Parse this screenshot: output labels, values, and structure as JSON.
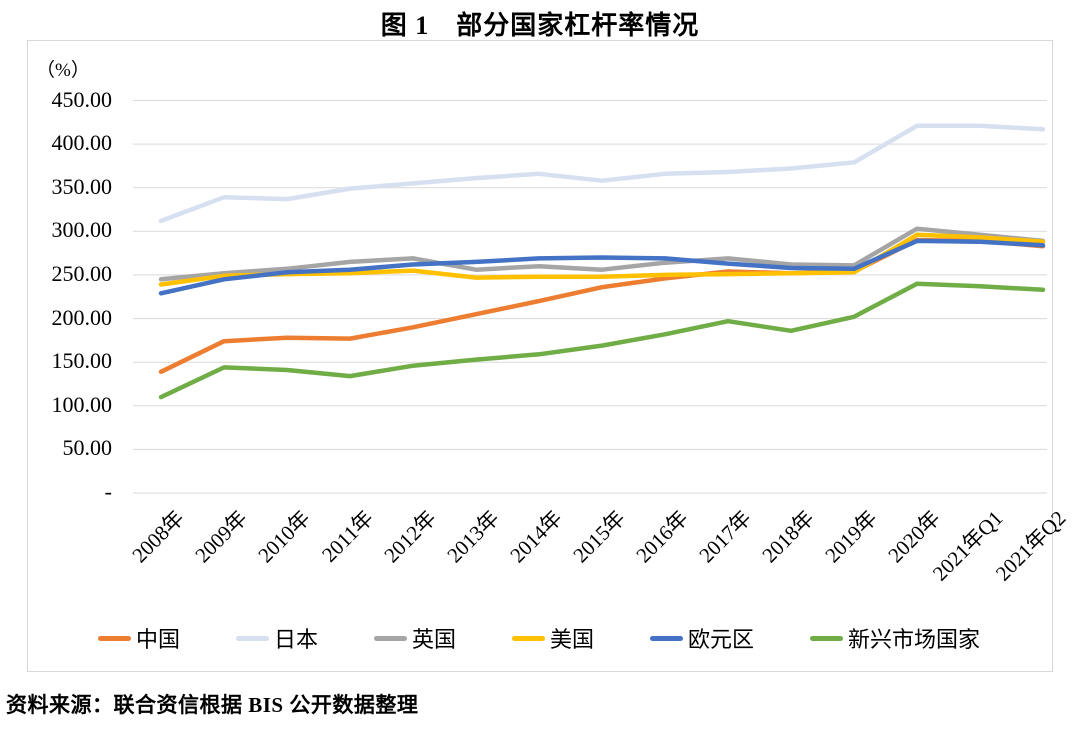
{
  "page": {
    "title": "图 1　部分国家杠杆率情况",
    "source": "资料来源：联合资信根据 BIS 公开数据整理"
  },
  "chart_data": {
    "type": "line",
    "title": "图 1　部分国家杠杆率情况",
    "unit_label": "（%）",
    "grid": true,
    "legend_position": "bottom",
    "categories": [
      "2008年",
      "2009年",
      "2010年",
      "2011年",
      "2012年",
      "2013年",
      "2014年",
      "2015年",
      "2016年",
      "2017年",
      "2018年",
      "2019年",
      "2020年",
      "2021年Q1",
      "2021年Q2"
    ],
    "y_axis": {
      "min": 0,
      "max": 450,
      "step": 50,
      "tick_labels": [
        "-",
        "50.00",
        "100.00",
        "150.00",
        "200.00",
        "250.00",
        "300.00",
        "350.00",
        "400.00",
        "450.00"
      ]
    },
    "series": [
      {
        "name": "中国",
        "color": "#ED7D31",
        "values": [
          139,
          174,
          178,
          177,
          190,
          205,
          220,
          236,
          246,
          254,
          252,
          254,
          290,
          289,
          283
        ]
      },
      {
        "name": "日本",
        "color": "#D6E0F0",
        "values": [
          312,
          339,
          337,
          349,
          355,
          361,
          366,
          358,
          366,
          368,
          372,
          379,
          421,
          421,
          417
        ]
      },
      {
        "name": "英国",
        "color": "#A5A5A5",
        "values": [
          245,
          252,
          257,
          265,
          269,
          256,
          260,
          256,
          264,
          269,
          262,
          261,
          303,
          296,
          289
        ]
      },
      {
        "name": "美国",
        "color": "#FFC000",
        "values": [
          239,
          249,
          251,
          252,
          255,
          247,
          248,
          248,
          250,
          251,
          252,
          253,
          296,
          293,
          288
        ]
      },
      {
        "name": "欧元区",
        "color": "#4472C4",
        "values": [
          229,
          245,
          253,
          256,
          262,
          265,
          269,
          270,
          269,
          263,
          258,
          257,
          289,
          288,
          284
        ]
      },
      {
        "name": "新兴市场国家",
        "color": "#70AD47",
        "values": [
          110,
          144,
          141,
          134,
          146,
          153,
          159,
          169,
          182,
          197,
          186,
          202,
          240,
          237,
          233
        ]
      }
    ]
  }
}
